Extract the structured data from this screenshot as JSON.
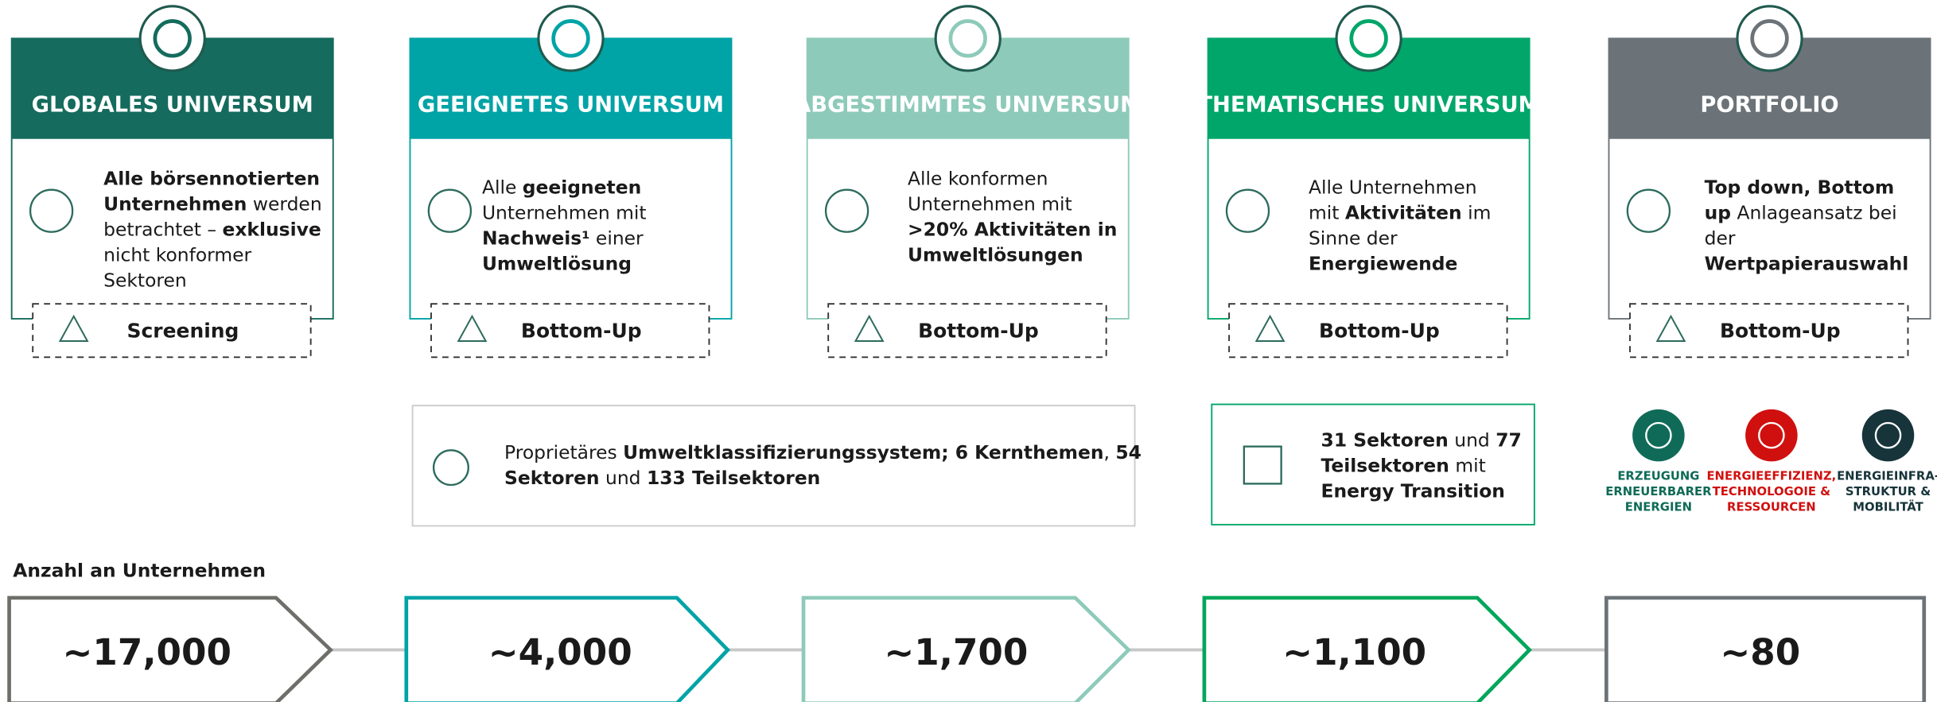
{
  "stages": [
    {
      "title": "GLOBALES UNIVERSUM",
      "color": "#156b5d",
      "description": [
        [
          {
            "text": "Alle börsennotierten",
            "bold": true
          }
        ],
        [
          {
            "text": "Unternehmen",
            "bold": true
          },
          {
            "text": " werden",
            "bold": false
          }
        ],
        [
          {
            "text": "betrachtet – ",
            "bold": false
          },
          {
            "text": "exklusive",
            "bold": true
          }
        ],
        [
          {
            "text": "nicht konformer",
            "bold": false
          }
        ],
        [
          {
            "text": "Sektoren",
            "bold": false
          }
        ]
      ],
      "method": "Screening",
      "count": "~17,000",
      "count_color": "#6e6e6a"
    },
    {
      "title": "GEEIGNETES UNIVERSUM",
      "color": "#00a3a6",
      "description": [
        [
          {
            "text": "Alle ",
            "bold": false
          },
          {
            "text": "geeigneten",
            "bold": true
          }
        ],
        [
          {
            "text": "Unternehmen mit",
            "bold": false
          }
        ],
        [
          {
            "text": "Nachweis¹",
            "bold": true
          },
          {
            "text": " einer",
            "bold": false
          }
        ],
        [
          {
            "text": "Umweltlösung",
            "bold": true
          }
        ]
      ],
      "method": "Bottom-Up",
      "count": "~4,000",
      "count_color": "#00a3a6"
    },
    {
      "title": "ABGESTIMMTES UNIVERSUM",
      "color": "#8ecab9",
      "description": [
        [
          {
            "text": "Alle konformen",
            "bold": false
          }
        ],
        [
          {
            "text": "Unternehmen mit",
            "bold": false
          }
        ],
        [
          {
            "text": ">20% Aktivitäten in",
            "bold": true
          }
        ],
        [
          {
            "text": "Umweltlösungen",
            "bold": true
          }
        ]
      ],
      "method": "Bottom-Up",
      "count": "~1,700",
      "count_color": "#8ecab9"
    },
    {
      "title": "THEMATISCHES UNIVERSUM",
      "color": "#00a66a",
      "description": [
        [
          {
            "text": "Alle Unternehmen",
            "bold": false
          }
        ],
        [
          {
            "text": "mit ",
            "bold": false
          },
          {
            "text": "Aktivitäten",
            "bold": true
          },
          {
            "text": " im",
            "bold": false
          }
        ],
        [
          {
            "text": "Sinne der",
            "bold": false
          }
        ],
        [
          {
            "text": "Energiewende",
            "bold": true
          }
        ]
      ],
      "method": "Bottom-Up",
      "count": "~1,100",
      "count_color": "#00a65a"
    },
    {
      "title": "PORTFOLIO",
      "color": "#6b7378",
      "description": [
        [
          {
            "text": "Top down, Bottom",
            "bold": true
          }
        ],
        [
          {
            "text": "up",
            "bold": true
          },
          {
            "text": " Anlageansatz bei",
            "bold": false
          }
        ],
        [
          {
            "text": "der",
            "bold": false
          }
        ],
        [
          {
            "text": "Wertpapierauswahl",
            "bold": true
          }
        ]
      ],
      "method": "Bottom-Up",
      "count": "~80",
      "count_color": "#6b7378"
    }
  ],
  "classification": [
    [
      {
        "text": "Proprietäres ",
        "bold": false
      },
      {
        "text": "Umweltklassifizierungssystem; 6 Kernthemen",
        "bold": true
      },
      {
        "text": ", ",
        "bold": false
      },
      {
        "text": "54",
        "bold": true
      }
    ],
    [
      {
        "text": "Sektoren",
        "bold": true
      },
      {
        "text": " und ",
        "bold": false
      },
      {
        "text": "133 Teilsektoren",
        "bold": true
      }
    ]
  ],
  "energy_transition": [
    [
      {
        "text": "31 Sektoren",
        "bold": true
      },
      {
        "text": " und ",
        "bold": false
      },
      {
        "text": "77",
        "bold": true
      }
    ],
    [
      {
        "text": "Teilsektoren",
        "bold": true
      },
      {
        "text": " mit",
        "bold": false
      }
    ],
    [
      {
        "text": "Energy Transition",
        "bold": true
      }
    ]
  ],
  "themes": [
    {
      "lines": [
        "ERZEUGUNG",
        "ERNEUERBARER",
        "ENERGIEN"
      ],
      "color": "#0f6b57"
    },
    {
      "lines": [
        "ENERGIEEFFIZIENZ,",
        "TECHNOLOGOIE &",
        "RESSOURCEN"
      ],
      "color": "#d0100f"
    },
    {
      "lines": [
        "ENERGIEINFRA-",
        "STRUKTUR &",
        "MOBILITÄT"
      ],
      "color": "#17343a"
    }
  ],
  "count_label": "Anzahl an Unternehmen"
}
